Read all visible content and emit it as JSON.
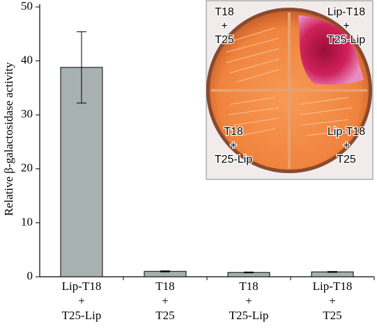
{
  "chart_data": {
    "type": "bar",
    "y_label": "Relative β-galactosidase activity",
    "categories": [
      [
        "Lip-T18",
        "+",
        "T25-Lip"
      ],
      [
        "T18",
        "+",
        "T25"
      ],
      [
        "T18",
        "+",
        "T25-Lip"
      ],
      [
        "Lip-T18",
        "+",
        "T25"
      ]
    ],
    "values": [
      38.8,
      1.0,
      0.8,
      0.9
    ],
    "errors": [
      6.6,
      0.1,
      0.08,
      0.08
    ],
    "color": "#a7b1af",
    "ylim": [
      0,
      50
    ],
    "yticks": [
      0,
      10,
      20,
      30,
      40,
      50
    ],
    "grid": false,
    "annotations": [
      [
        "T18",
        "+",
        "T25"
      ],
      [
        "Lip-T18",
        "+",
        "T25-Lip"
      ],
      [
        "T18",
        "+",
        "T25-Lip"
      ],
      [
        "Lip-T18",
        "+",
        "T25"
      ]
    ]
  }
}
